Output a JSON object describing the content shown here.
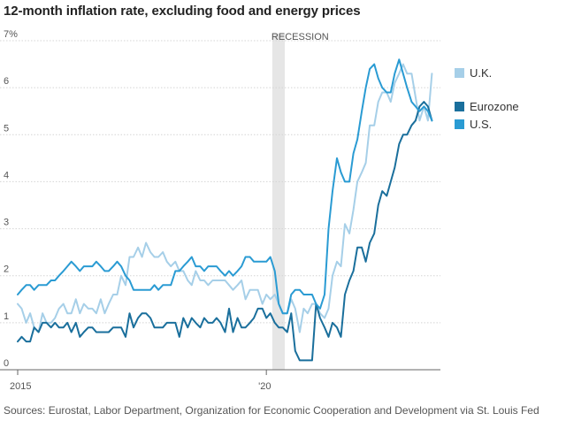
{
  "chart_data": {
    "type": "line",
    "title": "12-month inflation rate, excluding food and energy prices",
    "y_tick_labels": [
      "7%",
      "6",
      "5",
      "4",
      "3",
      "2",
      "1",
      "0"
    ],
    "x_tick_labels": [
      "2015",
      "'20"
    ],
    "ylim": [
      0,
      7
    ],
    "x_domain": [
      2015.0,
      2023.5
    ],
    "recession": {
      "label": "RECESSION",
      "start": 2020.12,
      "end": 2020.37
    },
    "colors": {
      "uk": "#a6cfe8",
      "eurozone": "#1a6f9c",
      "us": "#2a9bd3"
    },
    "legend": [
      {
        "key": "uk",
        "label": "U.K."
      },
      {
        "key": "eurozone",
        "label": "Eurozone"
      },
      {
        "key": "us",
        "label": "U.S."
      }
    ],
    "series": [
      {
        "key": "uk",
        "name": "U.K.",
        "x": [
          2015.0,
          2015.08,
          2015.17,
          2015.25,
          2015.33,
          2015.42,
          2015.5,
          2015.58,
          2015.67,
          2015.75,
          2015.83,
          2015.92,
          2016.0,
          2016.08,
          2016.17,
          2016.25,
          2016.33,
          2016.42,
          2016.5,
          2016.58,
          2016.67,
          2016.75,
          2016.83,
          2016.92,
          2017.0,
          2017.08,
          2017.17,
          2017.25,
          2017.33,
          2017.42,
          2017.5,
          2017.58,
          2017.67,
          2017.75,
          2017.83,
          2017.92,
          2018.0,
          2018.08,
          2018.17,
          2018.25,
          2018.33,
          2018.42,
          2018.5,
          2018.58,
          2018.67,
          2018.75,
          2018.83,
          2018.92,
          2019.0,
          2019.08,
          2019.17,
          2019.25,
          2019.33,
          2019.42,
          2019.5,
          2019.58,
          2019.67,
          2019.75,
          2019.83,
          2019.92,
          2020.0,
          2020.08,
          2020.17,
          2020.25,
          2020.33,
          2020.42,
          2020.5,
          2020.58,
          2020.67,
          2020.75,
          2020.83,
          2020.92,
          2021.0,
          2021.08,
          2021.17,
          2021.25,
          2021.33,
          2021.42,
          2021.5,
          2021.58,
          2021.67,
          2021.75,
          2021.83,
          2021.92,
          2022.0,
          2022.08,
          2022.17,
          2022.25,
          2022.33,
          2022.42,
          2022.5,
          2022.58,
          2022.67,
          2022.75,
          2022.83,
          2022.92,
          2023.0,
          2023.08,
          2023.17,
          2023.25,
          2023.33
        ],
        "values": [
          1.4,
          1.3,
          1.0,
          1.2,
          0.9,
          0.8,
          1.2,
          1.0,
          1.0,
          1.1,
          1.3,
          1.4,
          1.2,
          1.2,
          1.5,
          1.2,
          1.4,
          1.3,
          1.3,
          1.2,
          1.5,
          1.2,
          1.4,
          1.6,
          1.6,
          2.0,
          1.8,
          2.4,
          2.4,
          2.6,
          2.4,
          2.7,
          2.5,
          2.4,
          2.4,
          2.5,
          2.3,
          2.2,
          2.3,
          2.1,
          2.1,
          1.9,
          1.8,
          2.1,
          1.9,
          1.9,
          1.8,
          1.9,
          1.9,
          1.9,
          1.9,
          1.8,
          1.7,
          1.8,
          1.9,
          1.5,
          1.7,
          1.7,
          1.7,
          1.4,
          1.6,
          1.5,
          1.6,
          1.4,
          1.2,
          1.2,
          1.5,
          1.3,
          0.8,
          1.3,
          1.2,
          1.4,
          1.4,
          1.2,
          1.1,
          1.3,
          2.0,
          2.3,
          2.2,
          3.1,
          2.9,
          3.4,
          4.0,
          4.2,
          4.4,
          5.2,
          5.2,
          5.7,
          5.9,
          5.9,
          5.7,
          6.1,
          6.3,
          6.5,
          6.3,
          6.3,
          5.8,
          5.3,
          5.6,
          5.3,
          6.3
        ]
      },
      {
        "key": "eurozone",
        "name": "Eurozone",
        "x": [
          2015.0,
          2015.08,
          2015.17,
          2015.25,
          2015.33,
          2015.42,
          2015.5,
          2015.58,
          2015.67,
          2015.75,
          2015.83,
          2015.92,
          2016.0,
          2016.08,
          2016.17,
          2016.25,
          2016.33,
          2016.42,
          2016.5,
          2016.58,
          2016.67,
          2016.75,
          2016.83,
          2016.92,
          2017.0,
          2017.08,
          2017.17,
          2017.25,
          2017.33,
          2017.42,
          2017.5,
          2017.58,
          2017.67,
          2017.75,
          2017.83,
          2017.92,
          2018.0,
          2018.08,
          2018.17,
          2018.25,
          2018.33,
          2018.42,
          2018.5,
          2018.58,
          2018.67,
          2018.75,
          2018.83,
          2018.92,
          2019.0,
          2019.08,
          2019.17,
          2019.25,
          2019.33,
          2019.42,
          2019.5,
          2019.58,
          2019.67,
          2019.75,
          2019.83,
          2019.92,
          2020.0,
          2020.08,
          2020.17,
          2020.25,
          2020.33,
          2020.42,
          2020.5,
          2020.58,
          2020.67,
          2020.75,
          2020.83,
          2020.92,
          2021.0,
          2021.08,
          2021.17,
          2021.25,
          2021.33,
          2021.42,
          2021.5,
          2021.58,
          2021.67,
          2021.75,
          2021.83,
          2021.92,
          2022.0,
          2022.08,
          2022.17,
          2022.25,
          2022.33,
          2022.42,
          2022.5,
          2022.58,
          2022.67,
          2022.75,
          2022.83,
          2022.92,
          2023.0,
          2023.08,
          2023.17,
          2023.25,
          2023.33
        ],
        "values": [
          0.6,
          0.7,
          0.6,
          0.6,
          0.9,
          0.8,
          1.0,
          1.0,
          0.9,
          1.0,
          0.9,
          0.9,
          1.0,
          0.8,
          1.0,
          0.7,
          0.8,
          0.9,
          0.9,
          0.8,
          0.8,
          0.8,
          0.8,
          0.9,
          0.9,
          0.9,
          0.7,
          1.2,
          0.9,
          1.1,
          1.2,
          1.2,
          1.1,
          0.9,
          0.9,
          0.9,
          1.0,
          1.0,
          1.0,
          0.7,
          1.1,
          0.9,
          1.1,
          1.0,
          0.9,
          1.1,
          1.0,
          1.0,
          1.1,
          1.0,
          0.8,
          1.3,
          0.8,
          1.1,
          0.9,
          0.9,
          1.0,
          1.1,
          1.3,
          1.3,
          1.1,
          1.2,
          1.0,
          0.9,
          0.9,
          0.8,
          1.2,
          0.4,
          0.2,
          0.2,
          0.2,
          0.2,
          1.4,
          1.1,
          0.9,
          0.7,
          1.0,
          0.9,
          0.7,
          1.6,
          1.9,
          2.1,
          2.6,
          2.6,
          2.3,
          2.7,
          2.9,
          3.5,
          3.8,
          3.7,
          4.0,
          4.3,
          4.8,
          5.0,
          5.0,
          5.2,
          5.3,
          5.6,
          5.7,
          5.6,
          5.3
        ]
      },
      {
        "key": "us",
        "name": "U.S.",
        "x": [
          2015.0,
          2015.08,
          2015.17,
          2015.25,
          2015.33,
          2015.42,
          2015.5,
          2015.58,
          2015.67,
          2015.75,
          2015.83,
          2015.92,
          2016.0,
          2016.08,
          2016.17,
          2016.25,
          2016.33,
          2016.42,
          2016.5,
          2016.58,
          2016.67,
          2016.75,
          2016.83,
          2016.92,
          2017.0,
          2017.08,
          2017.17,
          2017.25,
          2017.33,
          2017.42,
          2017.5,
          2017.58,
          2017.67,
          2017.75,
          2017.83,
          2017.92,
          2018.0,
          2018.08,
          2018.17,
          2018.25,
          2018.33,
          2018.42,
          2018.5,
          2018.58,
          2018.67,
          2018.75,
          2018.83,
          2018.92,
          2019.0,
          2019.08,
          2019.17,
          2019.25,
          2019.33,
          2019.42,
          2019.5,
          2019.58,
          2019.67,
          2019.75,
          2019.83,
          2019.92,
          2020.0,
          2020.08,
          2020.17,
          2020.25,
          2020.33,
          2020.42,
          2020.5,
          2020.58,
          2020.67,
          2020.75,
          2020.83,
          2020.92,
          2021.0,
          2021.08,
          2021.17,
          2021.25,
          2021.33,
          2021.42,
          2021.5,
          2021.58,
          2021.67,
          2021.75,
          2021.83,
          2021.92,
          2022.0,
          2022.08,
          2022.17,
          2022.25,
          2022.33,
          2022.42,
          2022.5,
          2022.58,
          2022.67,
          2022.75,
          2022.83,
          2022.92,
          2023.0,
          2023.08,
          2023.17,
          2023.25,
          2023.33
        ],
        "values": [
          1.6,
          1.7,
          1.8,
          1.8,
          1.7,
          1.8,
          1.8,
          1.8,
          1.9,
          1.9,
          2.0,
          2.1,
          2.2,
          2.3,
          2.2,
          2.1,
          2.2,
          2.2,
          2.2,
          2.3,
          2.2,
          2.1,
          2.1,
          2.2,
          2.3,
          2.2,
          2.0,
          1.9,
          1.7,
          1.7,
          1.7,
          1.7,
          1.7,
          1.8,
          1.7,
          1.8,
          1.8,
          1.8,
          2.1,
          2.1,
          2.2,
          2.3,
          2.4,
          2.2,
          2.2,
          2.1,
          2.2,
          2.2,
          2.2,
          2.1,
          2.0,
          2.1,
          2.0,
          2.1,
          2.2,
          2.4,
          2.4,
          2.3,
          2.3,
          2.3,
          2.3,
          2.4,
          2.1,
          1.4,
          1.2,
          1.2,
          1.6,
          1.7,
          1.7,
          1.6,
          1.6,
          1.6,
          1.4,
          1.3,
          1.6,
          3.0,
          3.8,
          4.5,
          4.2,
          4.0,
          4.0,
          4.6,
          4.9,
          5.5,
          6.0,
          6.4,
          6.5,
          6.2,
          6.0,
          5.9,
          5.9,
          6.3,
          6.6,
          6.3,
          6.0,
          5.7,
          5.6,
          5.5,
          5.6,
          5.5,
          5.3
        ]
      }
    ],
    "source": "Sources: Eurostat, Labor Department, Organization for Economic Cooperation and Development via St. Louis Fed"
  }
}
